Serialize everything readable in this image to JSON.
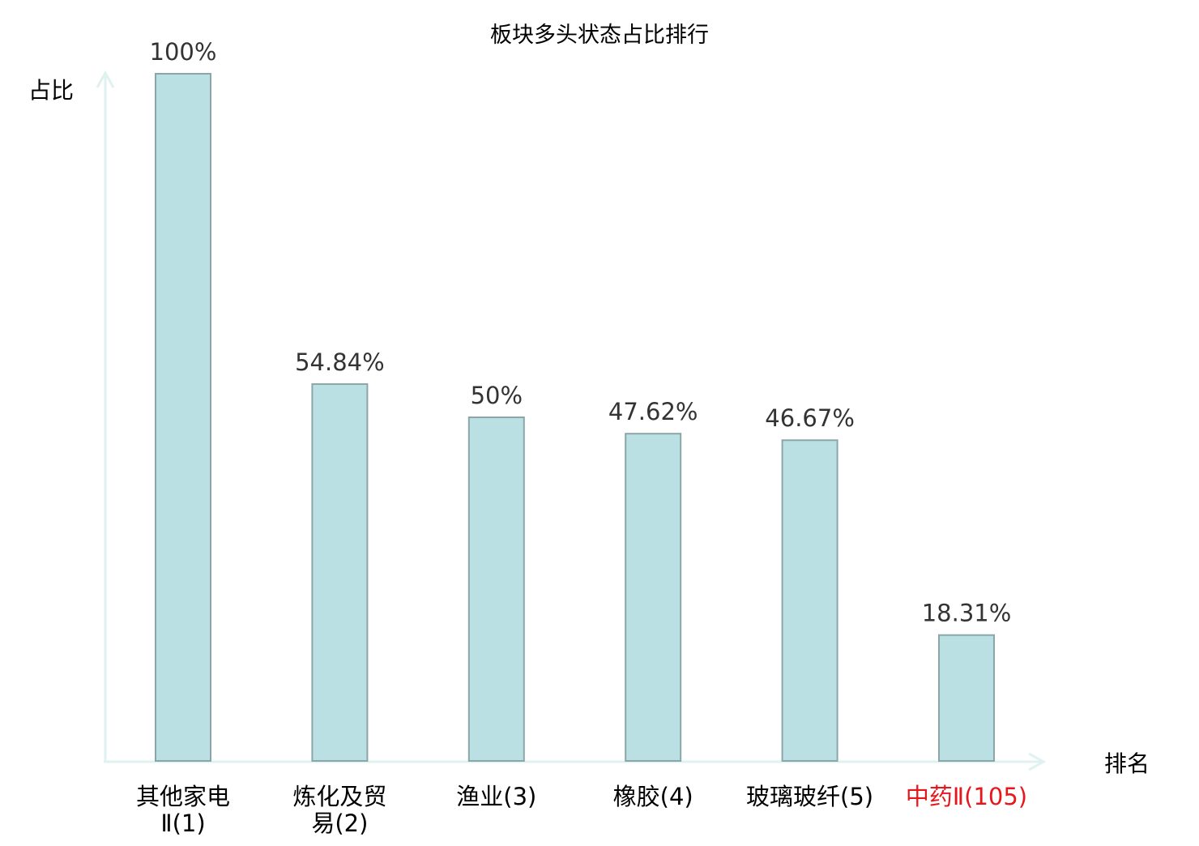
{
  "chart_data": {
    "type": "bar",
    "title": "板块多头状态占比排行",
    "xlabel": "排名",
    "ylabel": "占比",
    "ylim": [
      0,
      100
    ],
    "grid": false,
    "categories": [
      "其他家电Ⅱ(1)",
      "炼化及贸易(2)",
      "渔业(3)",
      "橡胶(4)",
      "玻璃玻纤(5)",
      "中药Ⅱ(105)"
    ],
    "category_lines": [
      [
        "其他家电",
        "Ⅱ(1)"
      ],
      [
        "炼化及贸",
        "易(2)"
      ],
      [
        "渔业(3)"
      ],
      [
        "橡胶(4)"
      ],
      [
        "玻璃玻纤(5)"
      ],
      [
        "中药Ⅱ(105)"
      ]
    ],
    "values": [
      100,
      54.84,
      50,
      47.62,
      46.67,
      18.31
    ],
    "data_labels": [
      "100%",
      "54.84%",
      "50%",
      "47.62%",
      "46.67%",
      "18.31%"
    ],
    "highlight_index": 5
  },
  "colors": {
    "bar_fill": "#bbe0e3",
    "bar_stroke": "#8aa6a8",
    "axis": "#dff2f0",
    "label": "#333333",
    "text": "#000000",
    "highlight": "#e8161b"
  }
}
